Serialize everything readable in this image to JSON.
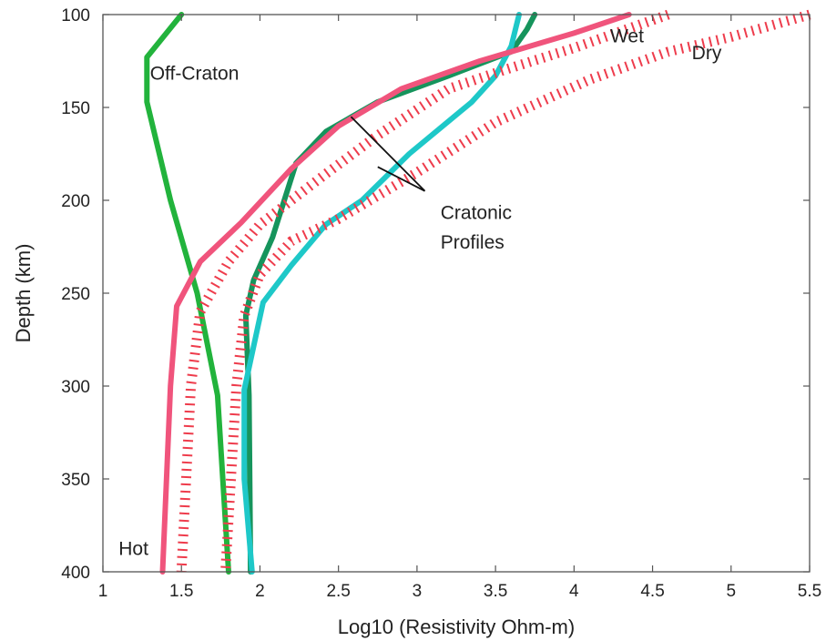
{
  "chart_data": {
    "type": "line",
    "title": "",
    "xlabel": "Log10 (Resistivity Ohm-m)",
    "ylabel": "Depth (km)",
    "xlim": [
      1,
      5.5
    ],
    "ylim": [
      100,
      400
    ],
    "y_inverted": true,
    "grid": false,
    "xticks": [
      "1",
      "1.5",
      "2",
      "2.5",
      "3",
      "3.5",
      "4",
      "4.5",
      "5",
      "5.5"
    ],
    "yticks": [
      "100",
      "150",
      "200",
      "250",
      "300",
      "350",
      "400"
    ],
    "series": [
      {
        "name": "Off-Craton",
        "color": "#22b33c",
        "style": "solid",
        "points": [
          [
            1.5,
            100
          ],
          [
            1.28,
            123
          ],
          [
            1.28,
            147
          ],
          [
            1.43,
            200
          ],
          [
            1.6,
            250
          ],
          [
            1.73,
            305
          ],
          [
            1.8,
            400
          ]
        ]
      },
      {
        "name": "",
        "color": "#16945c",
        "style": "solid",
        "points": [
          [
            3.75,
            100
          ],
          [
            3.7,
            108
          ],
          [
            3.6,
            120
          ],
          [
            3.2,
            133
          ],
          [
            2.75,
            147
          ],
          [
            2.42,
            163
          ],
          [
            2.23,
            180
          ],
          [
            2.08,
            220
          ],
          [
            1.96,
            243
          ],
          [
            1.91,
            262
          ],
          [
            1.93,
            305
          ],
          [
            1.94,
            400
          ]
        ]
      },
      {
        "name": "",
        "color": "#1ec8c8",
        "style": "solid",
        "points": [
          [
            3.65,
            100
          ],
          [
            3.6,
            117
          ],
          [
            3.5,
            133
          ],
          [
            3.35,
            147
          ],
          [
            2.95,
            175
          ],
          [
            2.65,
            200
          ],
          [
            2.42,
            213
          ],
          [
            2.2,
            235
          ],
          [
            2.02,
            255
          ],
          [
            1.9,
            302
          ],
          [
            1.9,
            350
          ],
          [
            1.95,
            400
          ]
        ]
      },
      {
        "name": "Hot",
        "color": "#f0547c",
        "style": "solid",
        "points": [
          [
            4.35,
            100
          ],
          [
            4.0,
            110
          ],
          [
            3.4,
            125
          ],
          [
            2.9,
            140
          ],
          [
            2.5,
            160
          ],
          [
            2.2,
            183
          ],
          [
            1.88,
            212
          ],
          [
            1.62,
            233
          ],
          [
            1.47,
            257
          ],
          [
            1.43,
            300
          ],
          [
            1.38,
            400
          ]
        ]
      },
      {
        "name": "",
        "color": "#ee3c4c",
        "style": "dashed",
        "points": [
          [
            4.6,
            100
          ],
          [
            4.0,
            118
          ],
          [
            3.55,
            130
          ],
          [
            3.2,
            140
          ],
          [
            2.75,
            165
          ],
          [
            2.4,
            187
          ],
          [
            2.0,
            213
          ],
          [
            1.8,
            233
          ],
          [
            1.62,
            260
          ],
          [
            1.56,
            300
          ],
          [
            1.5,
            400
          ]
        ]
      },
      {
        "name": "",
        "color": "#ee3c4c",
        "style": "dashed",
        "points": [
          [
            5.5,
            100
          ],
          [
            5.0,
            112
          ],
          [
            4.6,
            120
          ],
          [
            4.1,
            135
          ],
          [
            3.5,
            158
          ],
          [
            3.0,
            185
          ],
          [
            2.5,
            210
          ],
          [
            2.2,
            222
          ],
          [
            2.0,
            240
          ],
          [
            1.9,
            262
          ],
          [
            1.85,
            300
          ],
          [
            1.78,
            400
          ]
        ]
      }
    ],
    "annotations": [
      {
        "text": "Off-Craton",
        "x": 1.3,
        "y": 135
      },
      {
        "text": "Wet",
        "x": 4.23,
        "y": 115
      },
      {
        "text": "Dry",
        "x": 4.75,
        "y": 124
      },
      {
        "text": "Cratonic",
        "x": 3.15,
        "y": 210
      },
      {
        "text": "Profiles",
        "x": 3.15,
        "y": 226
      },
      {
        "text": "Hot",
        "x": 1.1,
        "y": 391
      }
    ],
    "pointer_lines": [
      {
        "from": [
          3.05,
          195
        ],
        "to": [
          2.58,
          155
        ]
      },
      {
        "from": [
          3.05,
          195
        ],
        "to": [
          2.75,
          182
        ]
      }
    ]
  }
}
